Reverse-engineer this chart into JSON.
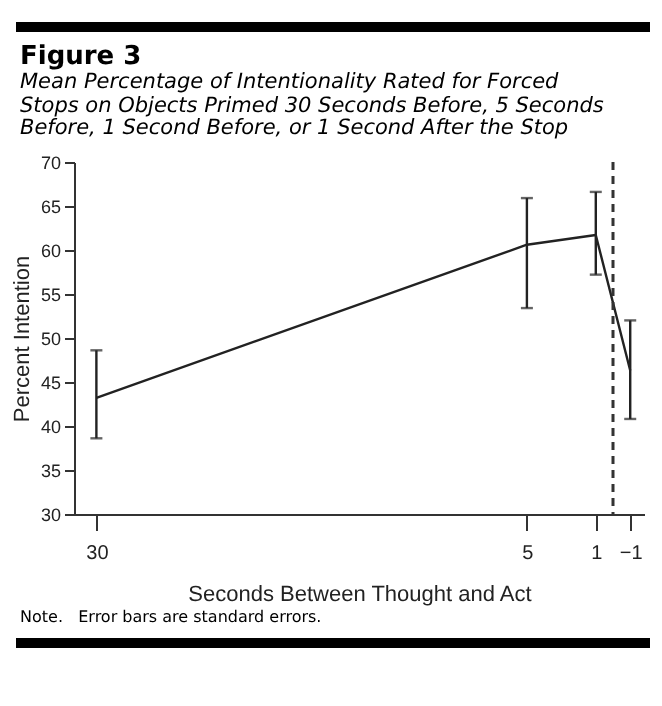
{
  "chart_data": {
    "type": "line",
    "title": "Figure 3",
    "subtitle": "Mean Percentage of Intentionality Rated for Forced Stops on Objects Primed 30 Seconds Before, 5 Seconds Before, 1 Second Before, or 1 Second After the Stop",
    "xlabel": "Seconds Between Thought and Act",
    "ylabel": "Percent Intention",
    "annotations": [
      "Note.   Error bars are standard errors."
    ],
    "x": [
      30,
      5,
      1,
      -1
    ],
    "series": [
      {
        "color": "#222222",
        "values": [
          43.2,
          60.6,
          61.7,
          46.3
        ],
        "errors": [
          [
            38.6,
            48.6
          ],
          [
            53.4,
            65.9
          ],
          [
            57.2,
            66.6
          ],
          [
            40.8,
            52.0
          ]
        ]
      }
    ],
    "xlim": [
      31.3,
      -1.8
    ],
    "xticks": [
      30,
      5,
      1,
      -1
    ],
    "ylim": [
      30,
      70
    ],
    "yticks": [
      30,
      35,
      40,
      45,
      50,
      55,
      60,
      65,
      70
    ],
    "ref_lines": [
      {
        "axis": "x",
        "value": 0,
        "line_style": "dashed",
        "color": "#333333"
      }
    ]
  }
}
